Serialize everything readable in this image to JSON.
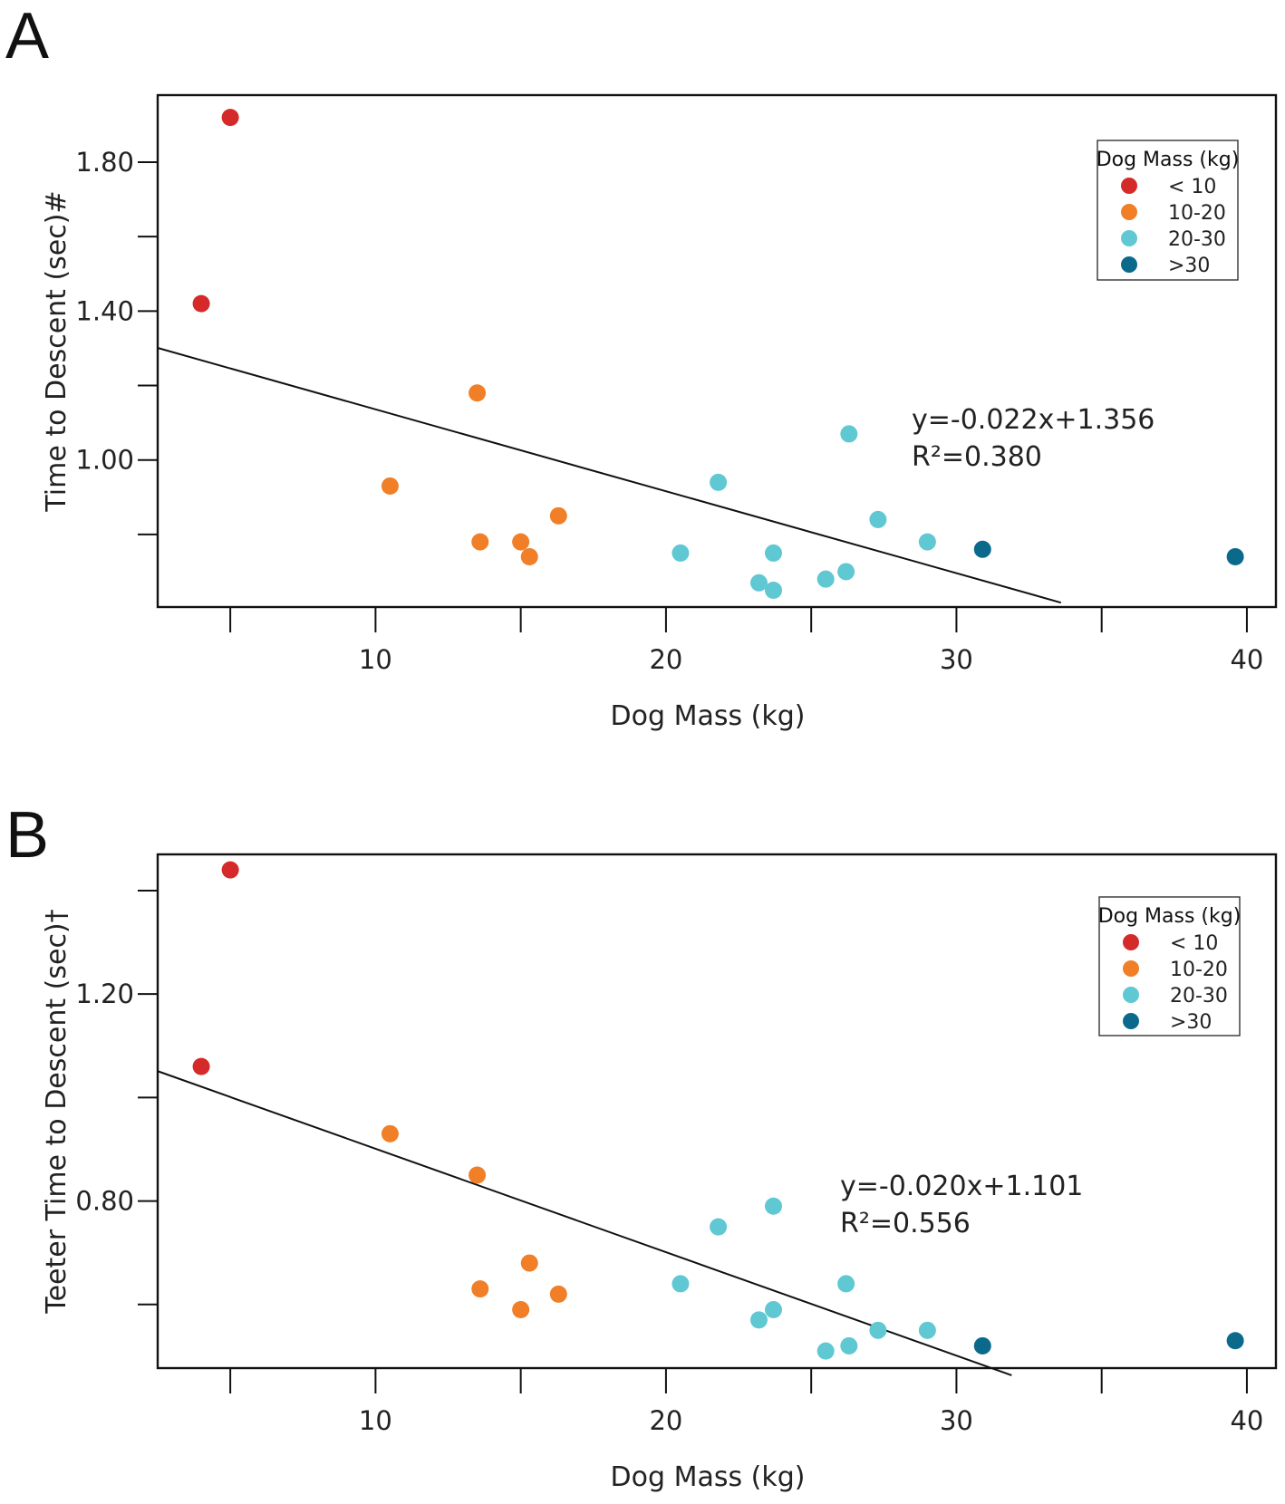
{
  "chart_data": [
    {
      "panel": "A",
      "type": "scatter",
      "xlabel": "Dog Mass (kg)",
      "ylabel": "Time to Descent (sec)#",
      "xlim": [
        2.5,
        41
      ],
      "ylim": [
        0.605,
        1.98
      ],
      "x_ticks": [
        5,
        10,
        15,
        20,
        25,
        30,
        35,
        40
      ],
      "x_tick_labels": [
        "10",
        "20",
        "30",
        "40"
      ],
      "x_tick_label_values": [
        10,
        20,
        30,
        40
      ],
      "y_ticks": [
        0.8,
        1.0,
        1.2,
        1.4,
        1.6,
        1.8
      ],
      "y_tick_labels": [
        "1.00",
        "1.40",
        "1.80"
      ],
      "y_tick_label_values": [
        1.0,
        1.4,
        1.8
      ],
      "fit": {
        "slope": -0.022,
        "intercept": 1.356,
        "x_range": [
          2.5,
          33.6
        ]
      },
      "equation": "y=-0.022x+1.356",
      "r2": "R²=0.380",
      "legend": {
        "title": "Dog Mass (kg)",
        "items": [
          {
            "label": "< 10",
            "color": "#d42a2a"
          },
          {
            "label": "10-20",
            "color": "#f07f28"
          },
          {
            "label": "20-30",
            "color": "#5fc8d3"
          },
          {
            "label": ">30",
            "color": "#0b6a8c"
          }
        ]
      },
      "series": [
        {
          "name": "< 10",
          "color": "#d42a2a",
          "points": [
            [
              5.0,
              1.92
            ],
            [
              4.0,
              1.42
            ]
          ]
        },
        {
          "name": "10-20",
          "color": "#f07f28",
          "points": [
            [
              13.5,
              1.18
            ],
            [
              10.5,
              0.93
            ],
            [
              16.3,
              0.85
            ],
            [
              13.6,
              0.78
            ],
            [
              15.0,
              0.78
            ],
            [
              15.3,
              0.74
            ]
          ]
        },
        {
          "name": "20-30",
          "color": "#5fc8d3",
          "points": [
            [
              26.3,
              1.07
            ],
            [
              21.8,
              0.94
            ],
            [
              27.3,
              0.84
            ],
            [
              29.0,
              0.78
            ],
            [
              20.5,
              0.75
            ],
            [
              23.7,
              0.75
            ],
            [
              26.2,
              0.7
            ],
            [
              25.5,
              0.68
            ],
            [
              23.2,
              0.67
            ],
            [
              23.7,
              0.65
            ]
          ]
        },
        {
          "name": ">30",
          "color": "#0b6a8c",
          "points": [
            [
              30.9,
              0.76
            ],
            [
              39.6,
              0.74
            ]
          ]
        }
      ]
    },
    {
      "panel": "B",
      "type": "scatter",
      "xlabel": "Dog Mass (kg)",
      "ylabel": "Teeter Time to Descent (sec)†",
      "xlim": [
        2.5,
        41
      ],
      "ylim": [
        0.477,
        1.47
      ],
      "x_ticks": [
        5,
        10,
        15,
        20,
        25,
        30,
        35,
        40
      ],
      "x_tick_labels": [
        "10",
        "20",
        "30",
        "40"
      ],
      "x_tick_label_values": [
        10,
        20,
        30,
        40
      ],
      "y_ticks": [
        0.6,
        0.8,
        1.0,
        1.2,
        1.4
      ],
      "y_tick_labels": [
        "0.80",
        "1.20"
      ],
      "y_tick_label_values": [
        0.8,
        1.2
      ],
      "fit": {
        "slope": -0.02,
        "intercept": 1.101,
        "x_range": [
          2.5,
          31.9
        ]
      },
      "equation": "y=-0.020x+1.101",
      "r2": "R²=0.556",
      "legend": {
        "title": "Dog Mass (kg)",
        "items": [
          {
            "label": "< 10",
            "color": "#d42a2a"
          },
          {
            "label": "10-20",
            "color": "#f07f28"
          },
          {
            "label": "20-30",
            "color": "#5fc8d3"
          },
          {
            "label": ">30",
            "color": "#0b6a8c"
          }
        ]
      },
      "series": [
        {
          "name": "< 10",
          "color": "#d42a2a",
          "points": [
            [
              5.0,
              1.44
            ],
            [
              4.0,
              1.06
            ]
          ]
        },
        {
          "name": "10-20",
          "color": "#f07f28",
          "points": [
            [
              10.5,
              0.93
            ],
            [
              13.5,
              0.85
            ],
            [
              15.3,
              0.68
            ],
            [
              13.6,
              0.63
            ],
            [
              16.3,
              0.62
            ],
            [
              15.0,
              0.59
            ]
          ]
        },
        {
          "name": "20-30",
          "color": "#5fc8d3",
          "points": [
            [
              23.7,
              0.79
            ],
            [
              21.8,
              0.75
            ],
            [
              20.5,
              0.64
            ],
            [
              26.2,
              0.64
            ],
            [
              23.7,
              0.59
            ],
            [
              23.2,
              0.57
            ],
            [
              27.3,
              0.55
            ],
            [
              29.0,
              0.55
            ],
            [
              26.3,
              0.52
            ],
            [
              25.5,
              0.51
            ]
          ]
        },
        {
          "name": ">30",
          "color": "#0b6a8c",
          "points": [
            [
              30.9,
              0.52
            ],
            [
              39.6,
              0.53
            ]
          ]
        }
      ]
    }
  ]
}
